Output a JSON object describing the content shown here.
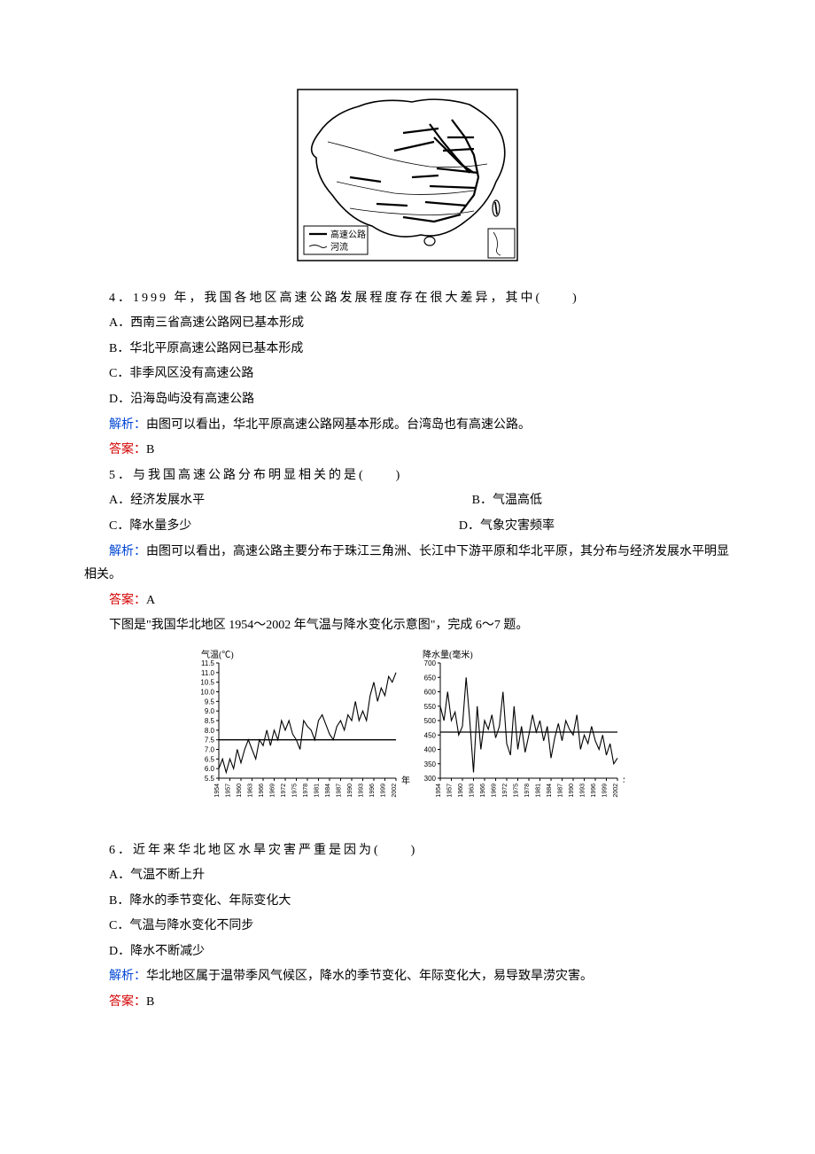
{
  "map": {
    "border_color": "#000000",
    "background_color": "#ffffff",
    "legend": {
      "item1": "高速公路",
      "item2": "河流"
    }
  },
  "q4": {
    "stem": "4．1999 年，我国各地区高速公路发展程度存在很大差异，其中(　　)",
    "optA": "A．西南三省高速公路网已基本形成",
    "optB": "B．华北平原高速公路网已基本形成",
    "optC": "C．非季风区没有高速公路",
    "optD": "D．沿海岛屿没有高速公路",
    "analysis_label": "解析：",
    "analysis": "由图可以看出，华北平原高速公路网基本形成。台湾岛也有高速公路。",
    "answer_label": "答案：",
    "answer": "B"
  },
  "q5": {
    "stem": "5．与我国高速公路分布明显相关的是(　　)",
    "optA": "A．经济发展水平",
    "optB": "B．气温高低",
    "optC": "C．降水量多少",
    "optD": "D．气象灾害频率",
    "analysis_label": "解析：",
    "analysis": "由图可以看出，高速公路主要分布于珠江三角洲、长江中下游平原和华北平原，其分布与经济发展水平明显相关。",
    "answer_label": "答案：",
    "answer": "A"
  },
  "intro67": "下图是\"我国华北地区 1954～2002 年气温与降水变化示意图\"，完成 6～7 题。",
  "charts": {
    "temp": {
      "title": "气温(℃)",
      "x_label": "年",
      "y_ticks": [
        "5.5",
        "6.0",
        "6.5",
        "7.0",
        "7.5",
        "8.0",
        "8.5",
        "9.0",
        "9.5",
        "10.0",
        "10.5",
        "11.0",
        "11.5"
      ],
      "x_ticks": [
        "1954",
        "1957",
        "1960",
        "1963",
        "1966",
        "1969",
        "1972",
        "1975",
        "1978",
        "1981",
        "1984",
        "1987",
        "1990",
        "1993",
        "1996",
        "1999",
        "2002"
      ],
      "line_color": "#000000",
      "background_color": "#ffffff",
      "avg_line": 7.5,
      "values": [
        6.0,
        6.5,
        5.8,
        6.5,
        6.0,
        7.0,
        6.3,
        7.0,
        7.5,
        7.0,
        6.5,
        7.5,
        7.2,
        8.0,
        7.2,
        8.0,
        7.5,
        8.5,
        8.0,
        8.5,
        7.8,
        7.5,
        7.0,
        8.5,
        8.2,
        8.0,
        7.5,
        8.5,
        8.8,
        8.3,
        7.8,
        7.5,
        8.2,
        8.5,
        8.0,
        8.8,
        8.5,
        9.5,
        8.5,
        9.0,
        8.5,
        9.8,
        10.5,
        9.5,
        10.2,
        9.8,
        10.8,
        10.5,
        11.0
      ]
    },
    "precip": {
      "title": "降水量(毫米)",
      "x_label": "年",
      "y_ticks": [
        "300",
        "350",
        "400",
        "450",
        "500",
        "550",
        "600",
        "650",
        "700"
      ],
      "x_ticks": [
        "1954",
        "1957",
        "1960",
        "1963",
        "1966",
        "1969",
        "1972",
        "1975",
        "1978",
        "1981",
        "1984",
        "1987",
        "1990",
        "1993",
        "1996",
        "1999",
        "2002"
      ],
      "line_color": "#000000",
      "background_color": "#ffffff",
      "avg_line": 460,
      "values": [
        550,
        500,
        600,
        500,
        530,
        450,
        480,
        650,
        500,
        320,
        550,
        400,
        500,
        470,
        520,
        440,
        480,
        600,
        420,
        380,
        550,
        400,
        480,
        390,
        450,
        520,
        460,
        500,
        430,
        480,
        370,
        440,
        490,
        430,
        500,
        470,
        450,
        520,
        400,
        450,
        420,
        480,
        430,
        400,
        450,
        380,
        420,
        350,
        370
      ]
    }
  },
  "q6": {
    "stem": "6．近年来华北地区水旱灾害严重是因为(　　)",
    "optA": "A．气温不断上升",
    "optB": "B．降水的季节变化、年际变化大",
    "optC": "C．气温与降水变化不同步",
    "optD": "D．降水不断减少",
    "analysis_label": "解析：",
    "analysis": "华北地区属于温带季风气候区，降水的季节变化、年际变化大，易导致旱涝灾害。",
    "answer_label": "答案：",
    "answer": "B"
  }
}
